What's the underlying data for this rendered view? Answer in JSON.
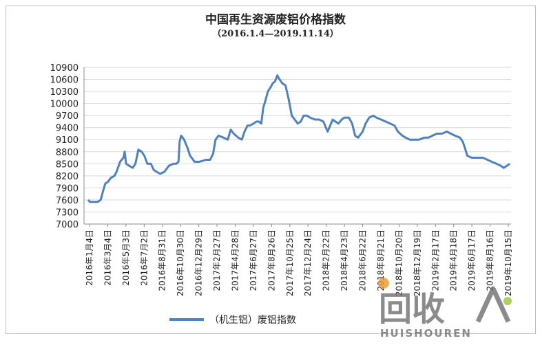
{
  "chart_data": {
    "type": "line",
    "title": "中国再生资源废铝价格指数",
    "subtitle": "（2016.1.4—2019.11.14）",
    "xlabel": "",
    "ylabel": "",
    "ylim": [
      7000,
      10900
    ],
    "yticks": [
      7000,
      7300,
      7600,
      7900,
      8200,
      8500,
      8800,
      9100,
      9400,
      9700,
      10000,
      10300,
      10600,
      10900
    ],
    "grid": true,
    "legend_position": "bottom",
    "x_tick_labels": [
      "2016年1月4日",
      "2016年3月4日",
      "2016年5月3日",
      "2016年7月2日",
      "2016年8月31日",
      "2016年10月30日",
      "2016年12月29日",
      "2017年2月27日",
      "2017年4月28日",
      "2017年6月27日",
      "2017年8月26日",
      "2017年10月25日",
      "2017年12月24日",
      "2018年2月22日",
      "2018年4月23日",
      "2018年6月22日",
      "2018年8月21日",
      "2018年10月20日",
      "2018年12月19日",
      "2019年2月17日",
      "2019年4月18日",
      "2019年6月17日",
      "2019年8月16日",
      "2019年10月15日"
    ],
    "series": [
      {
        "name": "（机生铝）废铝指数",
        "color": "#4f81bd",
        "x": [
          "2016-01-04",
          "2016-01-10",
          "2016-01-20",
          "2016-02-05",
          "2016-02-15",
          "2016-02-22",
          "2016-03-01",
          "2016-03-10",
          "2016-03-20",
          "2016-04-01",
          "2016-04-08",
          "2016-04-20",
          "2016-05-01",
          "2016-05-05",
          "2016-05-10",
          "2016-05-20",
          "2016-06-01",
          "2016-06-10",
          "2016-06-20",
          "2016-07-01",
          "2016-07-10",
          "2016-07-20",
          "2016-08-01",
          "2016-08-10",
          "2016-08-20",
          "2016-09-01",
          "2016-09-15",
          "2016-09-30",
          "2016-10-15",
          "2016-10-25",
          "2016-11-01",
          "2016-11-05",
          "2016-11-10",
          "2016-11-20",
          "2016-12-01",
          "2016-12-10",
          "2016-12-25",
          "2017-01-10",
          "2017-02-01",
          "2017-02-15",
          "2017-02-25",
          "2017-03-05",
          "2017-03-15",
          "2017-04-01",
          "2017-04-15",
          "2017-04-25",
          "2017-05-05",
          "2017-05-20",
          "2017-06-01",
          "2017-06-10",
          "2017-06-20",
          "2017-06-27",
          "2017-07-10",
          "2017-07-20",
          "2017-07-28",
          "2017-08-05",
          "2017-08-12",
          "2017-08-20",
          "2017-08-27",
          "2017-09-05",
          "2017-09-12",
          "2017-09-20",
          "2017-09-28",
          "2017-10-05",
          "2017-10-15",
          "2017-10-25",
          "2017-11-05",
          "2017-11-15",
          "2017-11-25",
          "2017-12-05",
          "2017-12-15",
          "2017-12-25",
          "2018-01-05",
          "2018-01-15",
          "2018-02-01",
          "2018-02-15",
          "2018-03-01",
          "2018-03-15",
          "2018-04-01",
          "2018-04-10",
          "2018-04-20",
          "2018-05-01",
          "2018-05-10",
          "2018-05-25",
          "2018-06-05",
          "2018-06-15",
          "2018-06-25",
          "2018-07-10",
          "2018-07-20",
          "2018-08-01",
          "2018-08-15",
          "2018-08-25",
          "2018-09-10",
          "2018-09-25",
          "2018-10-10",
          "2018-10-25",
          "2018-11-05",
          "2018-11-20",
          "2018-12-01",
          "2018-12-15",
          "2019-01-01",
          "2019-01-15",
          "2019-02-01",
          "2019-02-15",
          "2019-03-01",
          "2019-03-15",
          "2019-04-01",
          "2019-04-18",
          "2019-05-01",
          "2019-05-15",
          "2019-06-01",
          "2019-06-10",
          "2019-06-17",
          "2019-06-25",
          "2019-07-10",
          "2019-08-01",
          "2019-08-16",
          "2019-09-01",
          "2019-09-15",
          "2019-10-01",
          "2019-10-15",
          "2019-10-25",
          "2019-11-05",
          "2019-11-14"
        ],
        "y": [
          7600,
          7550,
          7550,
          7550,
          7600,
          7800,
          8000,
          8050,
          8150,
          8200,
          8300,
          8550,
          8650,
          8800,
          8500,
          8450,
          8400,
          8500,
          8850,
          8800,
          8700,
          8500,
          8500,
          8350,
          8300,
          8250,
          8300,
          8450,
          8500,
          8500,
          8550,
          9050,
          9200,
          9100,
          8900,
          8700,
          8550,
          8550,
          8600,
          8600,
          8750,
          9100,
          9200,
          9150,
          9100,
          9350,
          9250,
          9150,
          9100,
          9300,
          9450,
          9450,
          9500,
          9550,
          9550,
          9500,
          9900,
          10100,
          10300,
          10400,
          10500,
          10550,
          10700,
          10600,
          10500,
          10450,
          10100,
          9700,
          9600,
          9500,
          9550,
          9700,
          9700,
          9650,
          9600,
          9600,
          9550,
          9300,
          9600,
          9550,
          9500,
          9600,
          9650,
          9650,
          9500,
          9200,
          9150,
          9300,
          9500,
          9650,
          9700,
          9650,
          9600,
          9550,
          9500,
          9450,
          9300,
          9200,
          9150,
          9100,
          9100,
          9100,
          9150,
          9150,
          9200,
          9250,
          9250,
          9300,
          9250,
          9200,
          9150,
          9050,
          8900,
          8700,
          8650,
          8650,
          8650,
          8600,
          8550,
          8500,
          8450,
          8400,
          8450,
          8500
        ]
      }
    ]
  },
  "watermark": {
    "cn": "回收",
    "en": "HUISHOUREN"
  }
}
